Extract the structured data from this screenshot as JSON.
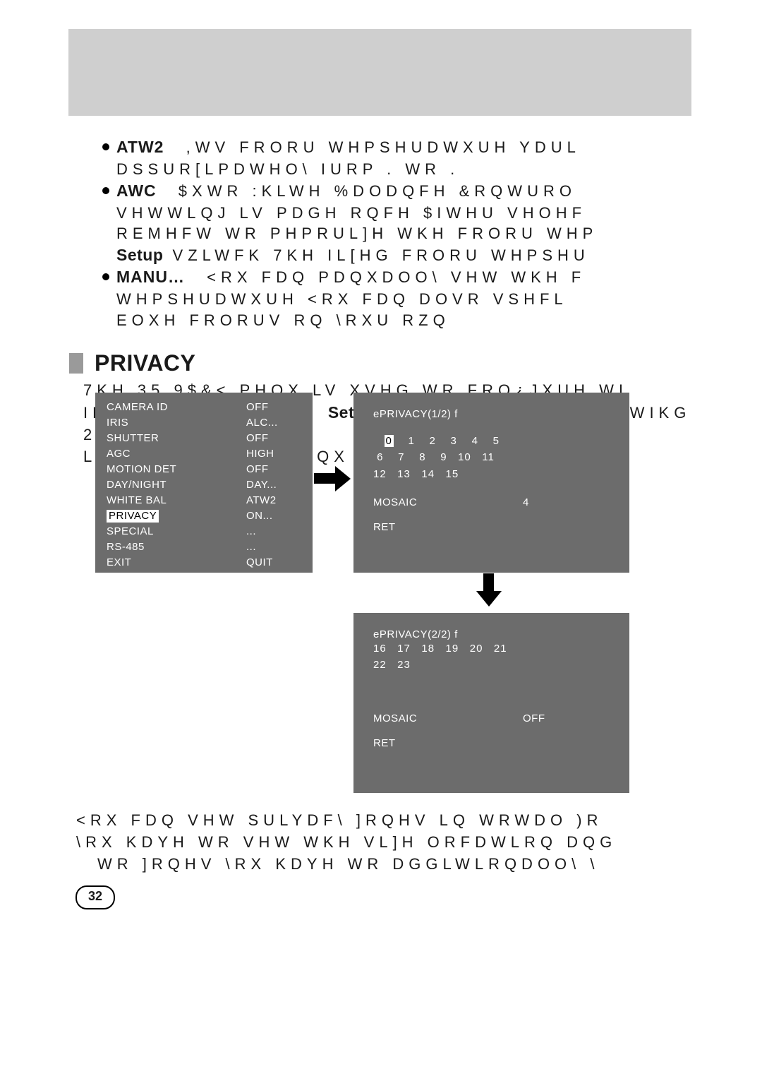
{
  "top": {
    "atw2_label": "ATW2",
    "atw2_line1": ",WV FRORU WHPSHUDWXUH YDUL",
    "atw2_line2": "DSSUR[LPDWHO\\ IURP     .  WR      .",
    "awc_label": "AWC",
    "awc_line1": "$XWR :KLWH %DODQFH &RQWURO",
    "awc_line2": "VHWWLQJ LV PDGH RQFH  $IWHU VHOHF",
    "awc_line3": "REMHFW WR PHPRUL]H WKH FRORU WHP",
    "setup_label": "Setup",
    "setup_rest": " VZLWFK  7KH IL[HG FRORU WHPSHU",
    "manu_label": "MANU…",
    "manu_line1": "<RX FDQ PDQXDOO\\ VHW WKH F",
    "manu_line2": "WHPSHUDWXUH  <RX FDQ DOVR VSHFL",
    "manu_line3": "EOXH FRORUV RQ \\RXU RZQ"
  },
  "privacy": {
    "heading": "PRIVACY",
    "p1": "7KH 35,9$&< PHQX LV XVHG WR FRQ¿JXUH WI",
    "p2a": "IRU WKLV FDPHUD ,",
    "p2_setup": "Setup",
    "p2b": "RXZV$LWHFKWVKZHLWIKG 21«  LV",
    "p3": "LQ WKH 35,9$&< PHQX  WKH FRUUHVSRQGLQ‫ن‬"
  },
  "menu_left": {
    "rows": [
      [
        "CAMERA  ID",
        "OFF"
      ],
      [
        "IRIS",
        "ALC..."
      ],
      [
        "SHUTTER",
        "OFF"
      ],
      [
        "AGC",
        "HIGH"
      ],
      [
        "MOTION DET",
        "OFF"
      ],
      [
        "DAY/NIGHT",
        "DAY..."
      ],
      [
        "WHITE BAL",
        "ATW2"
      ],
      [
        "PRIVACY",
        "ON..."
      ],
      [
        "SPECIAL",
        "..."
      ],
      [
        "RS-485",
        "..."
      ],
      [
        "EXIT",
        "QUIT"
      ]
    ],
    "selected_index": 7
  },
  "menu_right_1": {
    "title": "ePRIVACY(1/2) f",
    "row1": " 0    1    2    3    4    5",
    "row2": " 6    7    8    9   10   11",
    "row3": "12   13   14   15",
    "mosaic_k": "MOSAIC",
    "mosaic_v": "4",
    "ret": "RET"
  },
  "menu_right_2": {
    "title": "ePRIVACY(2/2) f",
    "row1": "16   17   18   19   20   21",
    "row2": "22   23",
    "mosaic_k": "MOSAIC",
    "mosaic_v": "OFF",
    "ret": "RET"
  },
  "footer": {
    "l1": "<RX FDQ VHW    SULYDF\\ ]RQHV LQ WRWDO  )R",
    "l2": "\\RX KDYH WR VHW WKH VL]H  ORFDWLRQ  DQG",
    "l3": "  WR    ]RQHV  \\RX KDYH WR DGGLWLRQDOO\\ \\",
    "page": "32"
  },
  "colors": {
    "gray_band": "#cfcfcf",
    "menu_bg": "#6c6c6c",
    "square": "#9a9a9a"
  }
}
